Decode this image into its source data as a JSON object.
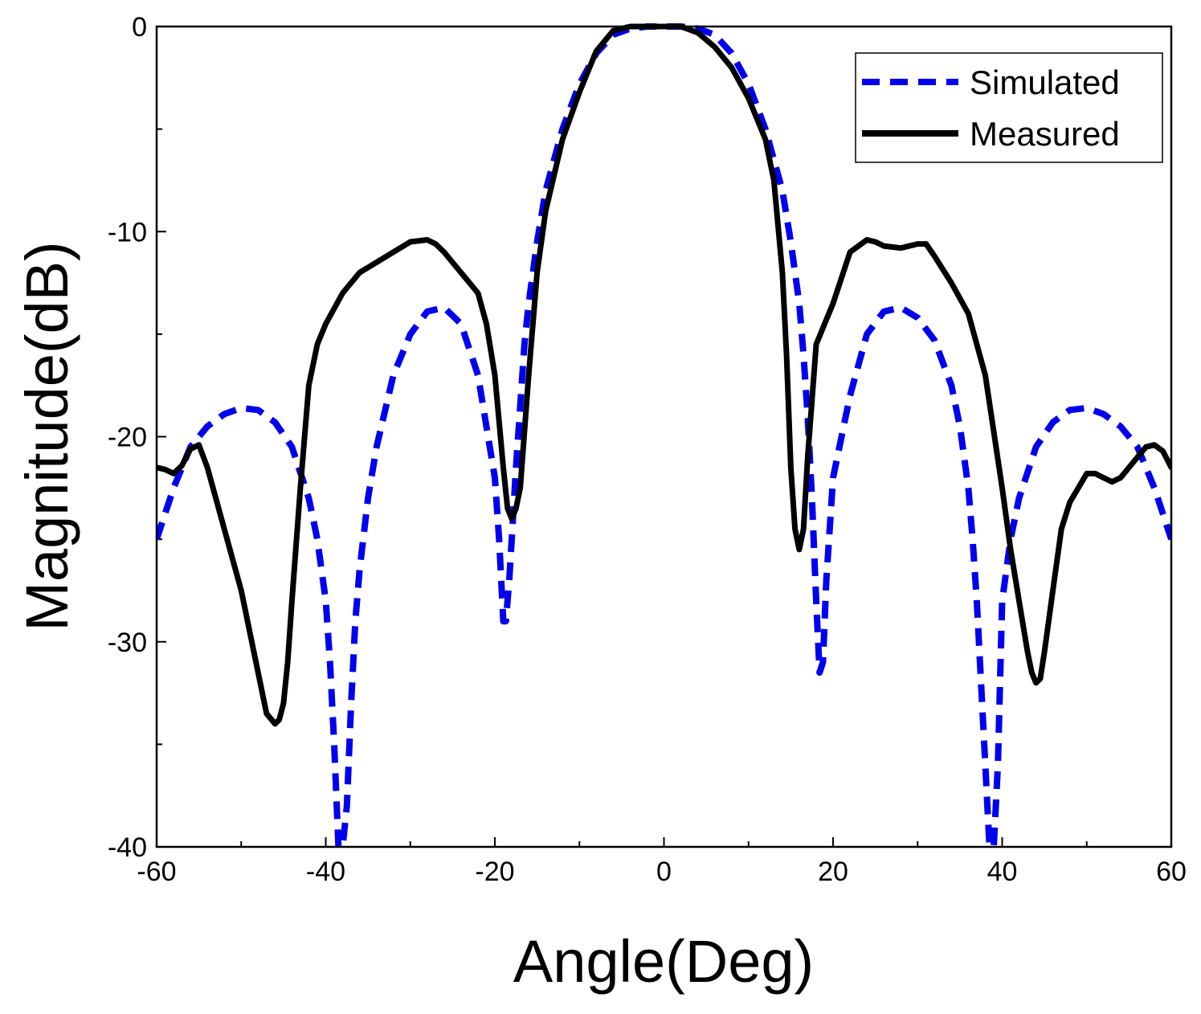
{
  "chart_data": {
    "type": "line",
    "title": "",
    "xlabel": "Angle(Deg)",
    "ylabel": "Magnitude(dB)",
    "xlim": [
      -60,
      60
    ],
    "ylim": [
      -40,
      0
    ],
    "xticks": [
      -60,
      -40,
      -20,
      0,
      20,
      40,
      60
    ],
    "yticks": [
      0,
      -10,
      -20,
      -30,
      -40
    ],
    "xtick_labels": [
      "-60",
      "-40",
      "-20",
      "0",
      "20",
      "40",
      "60"
    ],
    "ytick_labels": [
      "0",
      "-10",
      "-20",
      "-30",
      "-40"
    ],
    "grid": false,
    "legend_position": "top-right",
    "series": [
      {
        "name": "Simulated",
        "color": "#0000ee",
        "style": "dashed",
        "x": [
          -60,
          -58,
          -56,
          -54,
          -52,
          -50,
          -48,
          -46,
          -44,
          -42,
          -41,
          -40,
          -39.5,
          -39,
          -38.5,
          -38,
          -37.5,
          -37,
          -36.5,
          -36,
          -35,
          -34,
          -32,
          -30,
          -28,
          -26,
          -24,
          -22,
          -20,
          -19.5,
          -19,
          -18.7,
          -18.3,
          -18,
          -17.5,
          -17,
          -16.5,
          -16,
          -15,
          -14,
          -12,
          -10,
          -8,
          -6,
          -4,
          -2,
          0,
          2,
          4,
          6,
          8,
          10,
          12,
          14,
          15,
          16,
          16.5,
          17,
          17.5,
          18,
          18.4,
          18.8,
          19.2,
          20,
          22,
          24,
          26,
          28,
          30,
          32,
          34,
          35,
          36,
          36.5,
          37,
          37.5,
          38,
          38.5,
          39,
          39.5,
          40,
          41,
          42,
          44,
          46,
          48,
          50,
          52,
          54,
          56,
          58,
          60
        ],
        "values": [
          -25,
          -22.5,
          -20.5,
          -19.5,
          -18.9,
          -18.6,
          -18.7,
          -19.3,
          -20.5,
          -23,
          -25,
          -28,
          -31,
          -35,
          -40,
          -40,
          -38,
          -33,
          -29,
          -26.5,
          -23,
          -20.5,
          -17,
          -15,
          -13.9,
          -13.7,
          -14.5,
          -17,
          -22,
          -25,
          -29,
          -29,
          -27,
          -25,
          -21.5,
          -18.5,
          -15.5,
          -13.5,
          -10.5,
          -8,
          -5,
          -2.8,
          -1.3,
          -0.4,
          -0.1,
          0,
          0,
          0,
          -0.1,
          -0.4,
          -1.3,
          -2.8,
          -5,
          -8,
          -10.5,
          -13.5,
          -16,
          -19,
          -23,
          -28,
          -31.5,
          -31,
          -27,
          -22,
          -18,
          -15,
          -13.9,
          -13.7,
          -14.2,
          -15.3,
          -17.5,
          -19.5,
          -22.5,
          -25,
          -28,
          -32,
          -36,
          -40,
          -40,
          -36,
          -28,
          -25,
          -23,
          -20.5,
          -19.3,
          -18.7,
          -18.6,
          -18.9,
          -19.5,
          -20.5,
          -22.5,
          -25
        ]
      },
      {
        "name": "Measured",
        "color": "#000000",
        "style": "solid",
        "x": [
          -60,
          -59,
          -58,
          -57,
          -56,
          -55,
          -54,
          -53,
          -52,
          -51,
          -50,
          -49,
          -48,
          -47,
          -46,
          -45.5,
          -45,
          -44.5,
          -44,
          -43,
          -42,
          -41,
          -40,
          -38,
          -36,
          -34,
          -32,
          -30,
          -28,
          -27,
          -26,
          -24,
          -22,
          -21,
          -20,
          -19,
          -18.5,
          -18,
          -17.5,
          -17,
          -16,
          -15,
          -14,
          -12,
          -10,
          -8,
          -6,
          -4,
          -2,
          0,
          2,
          4,
          6,
          8,
          10,
          12,
          13,
          14,
          14.5,
          15,
          15.5,
          16,
          16.5,
          17,
          18,
          19,
          20,
          22,
          24,
          25,
          26,
          28,
          30,
          31,
          32,
          34,
          36,
          38,
          40,
          41,
          42,
          43,
          43.5,
          44,
          44.5,
          45,
          46,
          47,
          48,
          49,
          50,
          51,
          52,
          53,
          54,
          55,
          56,
          57,
          58,
          59,
          60
        ],
        "values": [
          -21.5,
          -21.6,
          -21.8,
          -21.4,
          -20.6,
          -20.4,
          -21.5,
          -23,
          -24.5,
          -26,
          -27.5,
          -29.5,
          -31.5,
          -33.5,
          -34,
          -33.8,
          -33,
          -31,
          -28,
          -22.5,
          -17.5,
          -15.5,
          -14.5,
          -13,
          -12,
          -11.5,
          -11,
          -10.5,
          -10.4,
          -10.6,
          -11,
          -12,
          -13,
          -14.5,
          -17,
          -21.5,
          -23.5,
          -24,
          -23.5,
          -22.5,
          -17,
          -12,
          -9,
          -5.5,
          -3.2,
          -1.2,
          -0.2,
          0,
          0,
          0,
          0,
          -0.3,
          -1,
          -2,
          -3.5,
          -5.5,
          -7.5,
          -12,
          -16,
          -21.5,
          -24.5,
          -25.5,
          -24.5,
          -21,
          -15.5,
          -14.5,
          -13.5,
          -11,
          -10.4,
          -10.5,
          -10.7,
          -10.8,
          -10.6,
          -10.6,
          -11.2,
          -12.5,
          -14,
          -17,
          -22.5,
          -25.5,
          -28,
          -30.5,
          -31.5,
          -32,
          -31.8,
          -30.5,
          -27.5,
          -24.5,
          -23.2,
          -22.5,
          -21.8,
          -21.8,
          -22,
          -22.2,
          -22,
          -21.5,
          -21,
          -20.5,
          -20.4,
          -20.7,
          -21.5
        ]
      }
    ]
  }
}
